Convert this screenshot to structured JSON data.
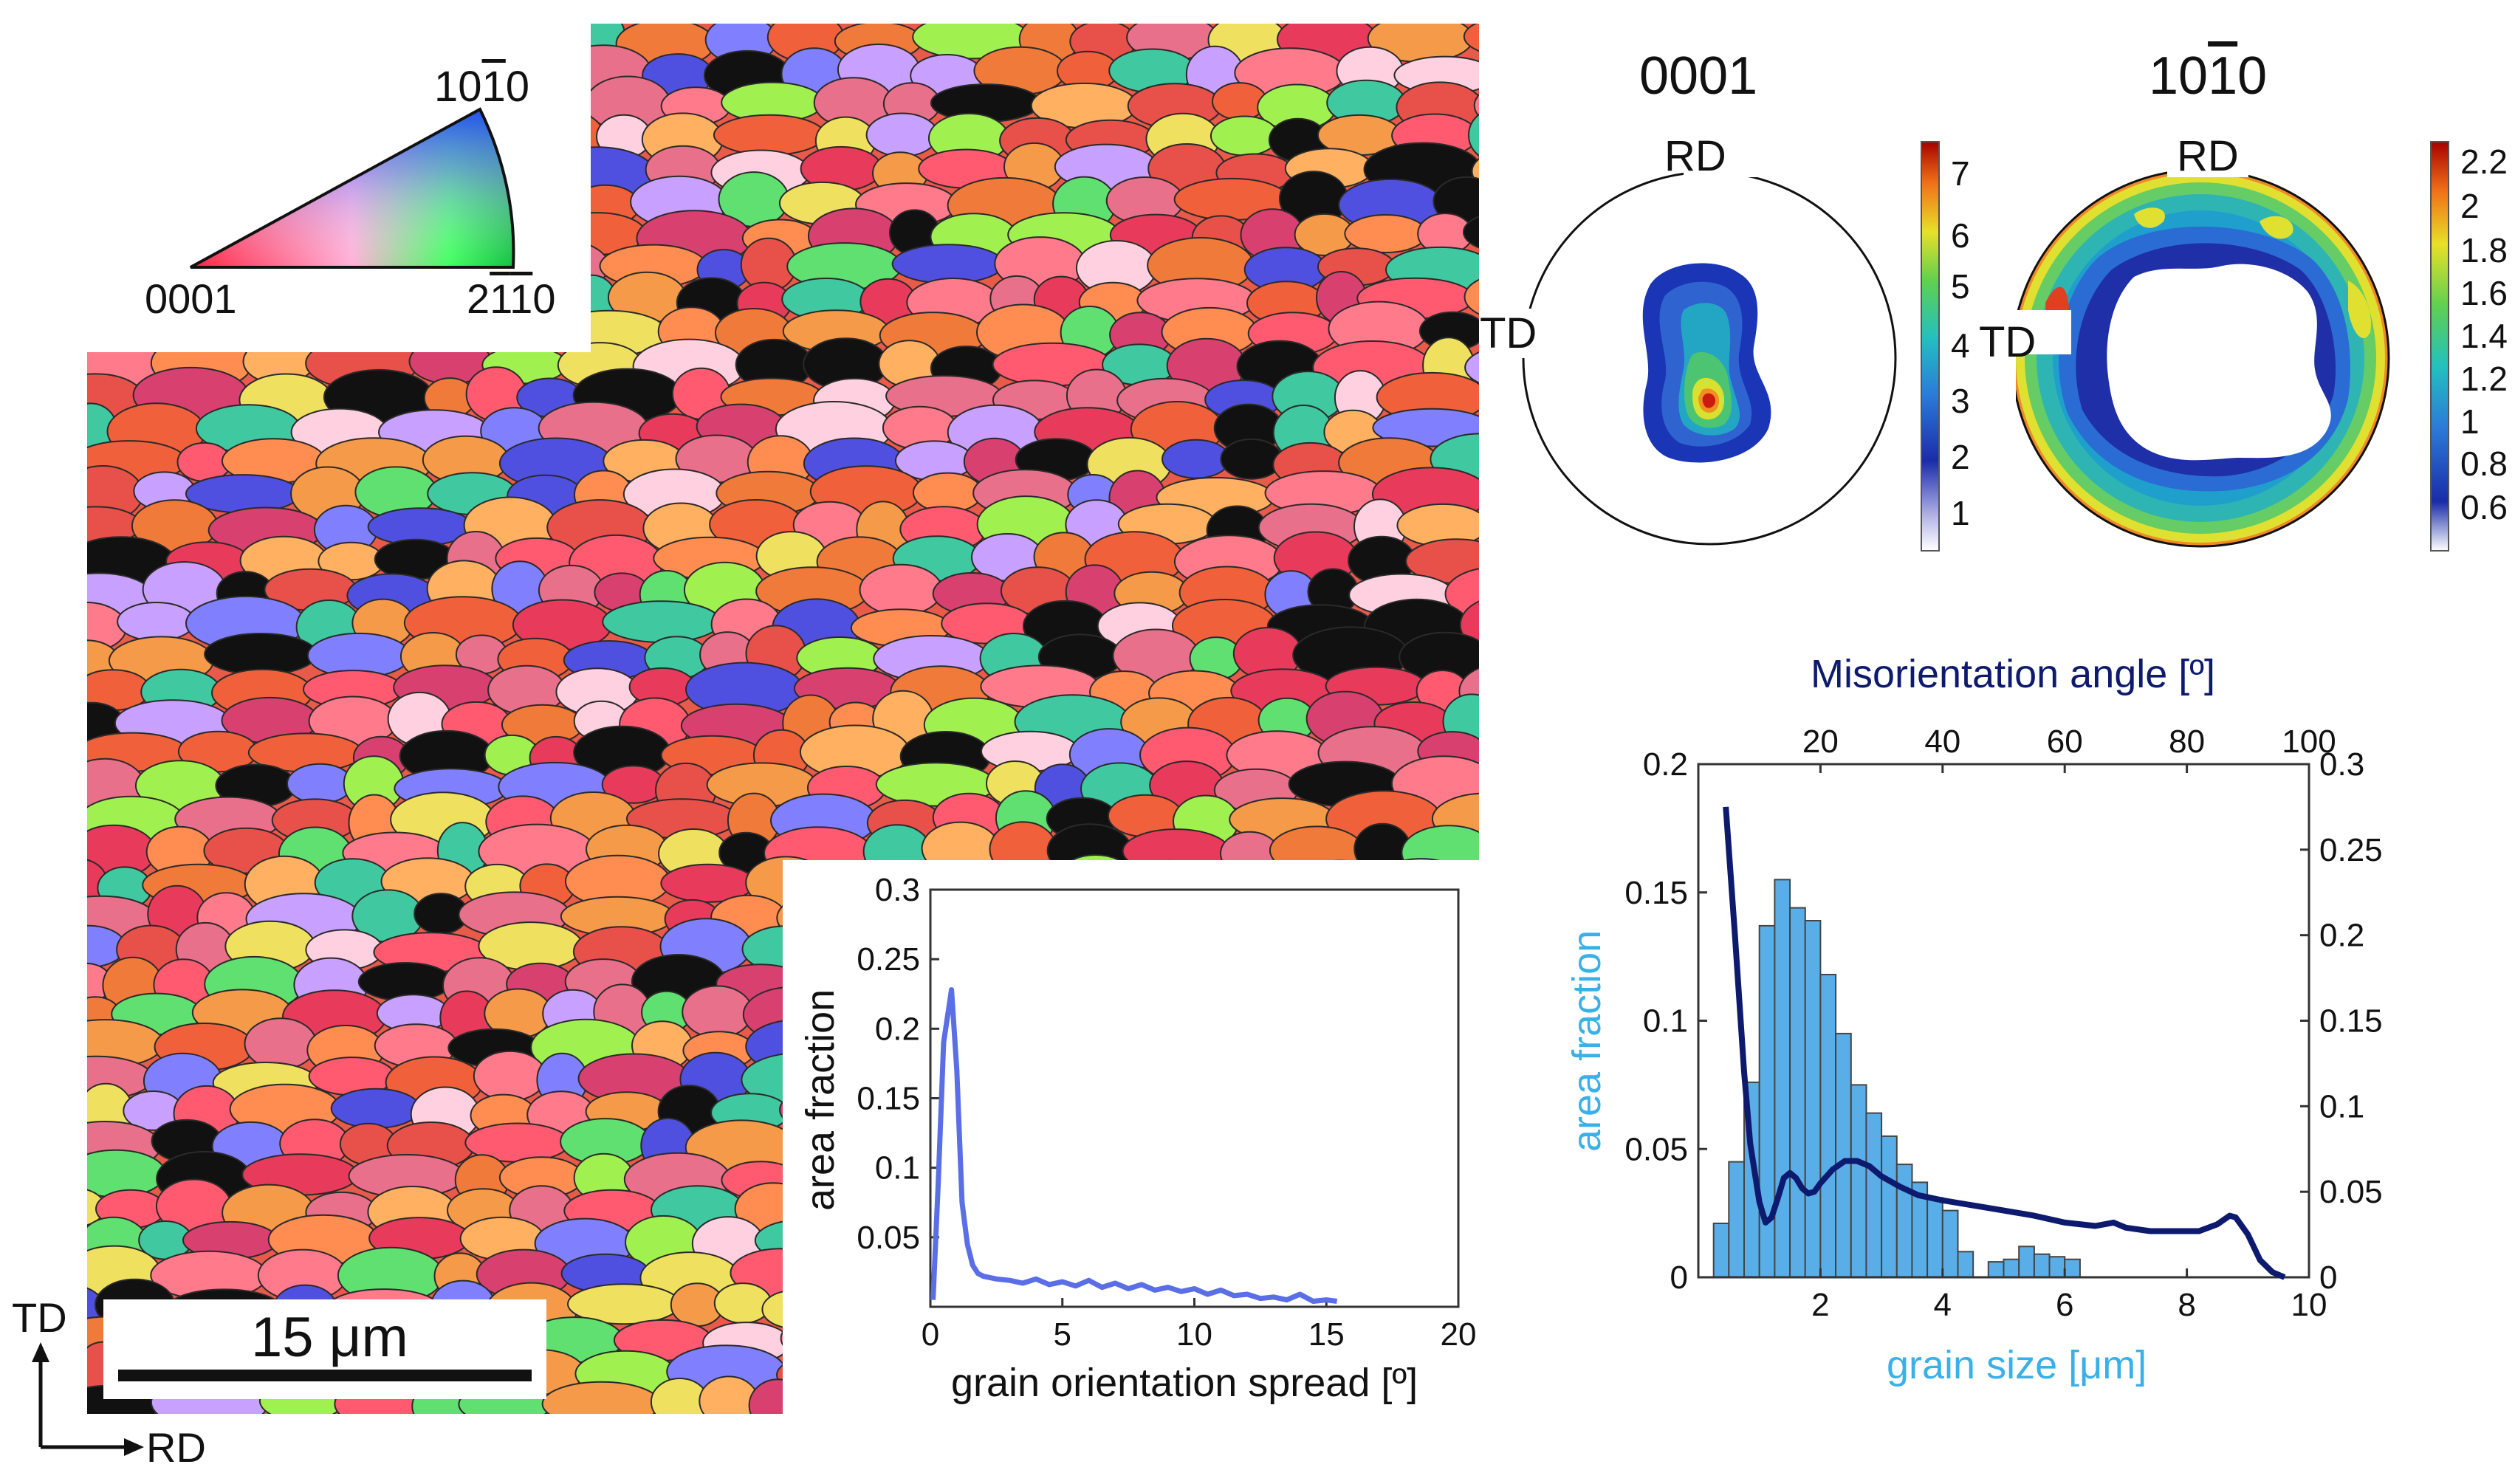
{
  "ipf_key": {
    "corner_top": "10̅1̅0",
    "corner_left": "0001",
    "corner_right": "21̅1̅0",
    "corner_top_display": "10",
    "corner_top_bar": "1",
    "corner_top_end": "0",
    "corner_right_a": "2",
    "corner_right_b": "1",
    "corner_right_c": "1",
    "corner_right_d": "0"
  },
  "scale_bar": {
    "label": "15 μm"
  },
  "axes_indicator": {
    "vertical": "TD",
    "horizontal": "RD"
  },
  "pole_figures": [
    {
      "title": "0001",
      "rd_label": "RD",
      "td_label": "TD",
      "colorbar_ticks": [
        "7",
        "6",
        "5",
        "4",
        "3",
        "2",
        "1"
      ],
      "colors": {
        "low": "#ffffff",
        "mid": "#1a3fbf",
        "high": "#b30000"
      }
    },
    {
      "title_a": "10",
      "title_bar": "1",
      "title_b": "0",
      "rd_label": "RD",
      "td_label": "TD",
      "colorbar_ticks": [
        "2.2",
        "2",
        "1.8",
        "1.6",
        "1.4",
        "1.2",
        "1",
        "0.8",
        "0.6"
      ]
    }
  ],
  "chart_data": [
    {
      "type": "line",
      "title": "",
      "xlabel": "grain orientation spread [º]",
      "ylabel": "area fraction",
      "xlim": [
        0,
        20
      ],
      "ylim": [
        0,
        0.3
      ],
      "x_ticks": [
        "0",
        "5",
        "10",
        "15",
        "20"
      ],
      "y_ticks": [
        "0.05",
        "0.1",
        "0.15",
        "0.2",
        "0.25",
        "0.3"
      ],
      "series": [
        {
          "color": "#5a6ee6",
          "x": [
            0.1,
            0.3,
            0.5,
            0.8,
            1.0,
            1.2,
            1.4,
            1.6,
            1.8,
            2.0,
            2.5,
            3.0,
            3.5,
            4.0,
            4.5,
            5.0,
            5.5,
            6.0,
            6.5,
            7.0,
            7.5,
            8.0,
            8.5,
            9.0,
            9.5,
            10.0,
            10.5,
            11.0,
            11.5,
            12.0,
            12.5,
            13.0,
            13.5,
            14.0,
            14.5,
            15.0,
            15.4
          ],
          "y": [
            0.005,
            0.09,
            0.19,
            0.228,
            0.17,
            0.075,
            0.045,
            0.03,
            0.024,
            0.022,
            0.02,
            0.019,
            0.017,
            0.02,
            0.016,
            0.018,
            0.015,
            0.019,
            0.014,
            0.017,
            0.013,
            0.016,
            0.012,
            0.014,
            0.011,
            0.013,
            0.009,
            0.012,
            0.008,
            0.009,
            0.006,
            0.007,
            0.005,
            0.009,
            0.004,
            0.005,
            0.004
          ]
        }
      ]
    },
    {
      "type": "bar",
      "title": "",
      "xlabel": "grain size [μm]",
      "ylabel": "area fraction",
      "top_xlabel": "Misorientation angle [º]",
      "xlim": [
        0,
        10
      ],
      "ylim": [
        0,
        0.2
      ],
      "top_xlim": [
        0,
        100
      ],
      "right_ylim": [
        0,
        0.3
      ],
      "x_ticks": [
        "2",
        "4",
        "6",
        "8",
        "10"
      ],
      "y_ticks": [
        "0",
        "0.05",
        "0.1",
        "0.15",
        "0.2"
      ],
      "top_ticks": [
        "20",
        "40",
        "60",
        "80",
        "100"
      ],
      "right_ticks": [
        "0",
        "0.05",
        "0.1",
        "0.15",
        "0.2",
        "0.25",
        "0.3"
      ],
      "bar_color": "#5aaee8",
      "bars": {
        "x": [
          0.375,
          0.625,
          0.875,
          1.125,
          1.375,
          1.625,
          1.875,
          2.125,
          2.375,
          2.625,
          2.875,
          3.125,
          3.375,
          3.625,
          3.875,
          4.125,
          4.375,
          4.625,
          4.875,
          5.125,
          5.375,
          5.625,
          5.875,
          6.125,
          6.375,
          6.625,
          6.875,
          7.125,
          7.375,
          7.625,
          7.875,
          8.125,
          8.375,
          8.625,
          8.875,
          9.125,
          9.375,
          9.625
        ],
        "values": [
          0.021,
          0.045,
          0.076,
          0.137,
          0.155,
          0.144,
          0.139,
          0.118,
          0.095,
          0.075,
          0.064,
          0.055,
          0.044,
          0.037,
          0.031,
          0.026,
          0.01,
          0.0,
          0.006,
          0.007,
          0.012,
          0.009,
          0.008,
          0.007,
          0.0,
          0.0,
          0.0,
          0.0,
          0.0,
          0.0,
          0.0,
          0.0,
          0.0,
          0.0,
          0.0,
          0.0,
          0.0,
          0.0
        ]
      },
      "series": [
        {
          "color": "#0d1a6e",
          "axis": "top-right",
          "x": [
            4.5,
            6,
            7.5,
            8.5,
            10,
            11,
            12,
            13,
            14,
            15,
            16,
            17,
            18,
            19,
            20,
            22,
            24,
            26,
            28,
            30,
            33,
            36,
            40,
            45,
            50,
            55,
            60,
            65,
            68,
            70,
            74,
            78,
            82,
            85,
            87,
            88,
            90,
            92,
            94,
            96
          ],
          "y": [
            0.275,
            0.2,
            0.12,
            0.078,
            0.044,
            0.032,
            0.035,
            0.046,
            0.058,
            0.061,
            0.058,
            0.052,
            0.049,
            0.05,
            0.055,
            0.063,
            0.068,
            0.068,
            0.065,
            0.059,
            0.053,
            0.048,
            0.045,
            0.042,
            0.039,
            0.036,
            0.032,
            0.03,
            0.032,
            0.029,
            0.027,
            0.027,
            0.027,
            0.031,
            0.036,
            0.035,
            0.025,
            0.01,
            0.003,
            0.0
          ]
        }
      ]
    }
  ],
  "labels": {
    "gos_ylabel": "area fraction",
    "gos_xlabel": "grain orientation spread [º]",
    "gs_ylabel": "area fraction",
    "gs_xlabel": "grain size [μm]",
    "gs_toplabel": "Misorientation angle [º]"
  }
}
